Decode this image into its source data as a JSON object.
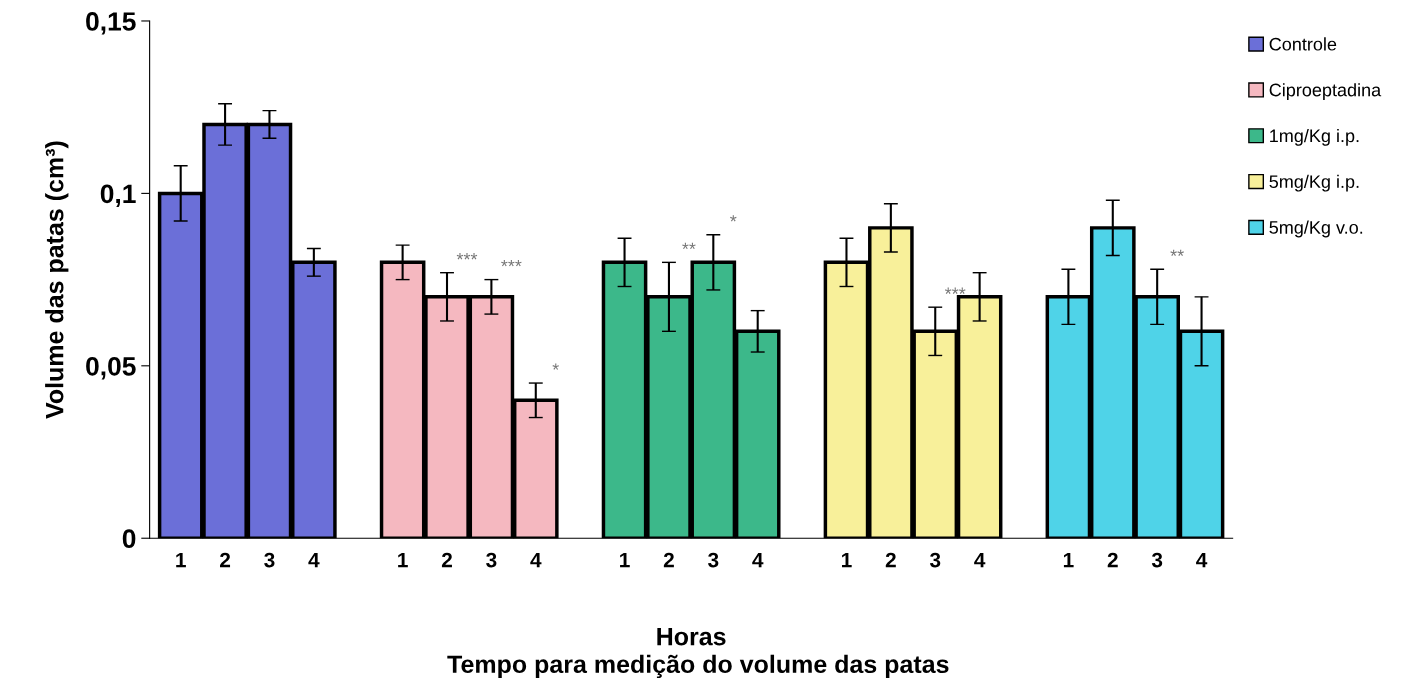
{
  "chart_data": {
    "type": "bar",
    "ylabel": "Volume das patas (cm³)",
    "xlabel": "Horas",
    "annotations": [
      "Tempo para medição do volume das patas"
    ],
    "categories": [
      "1",
      "2",
      "3",
      "4",
      null,
      "1",
      "2",
      "3",
      "4",
      null,
      "1",
      "2",
      "3",
      "4",
      null,
      "1",
      "2",
      "3",
      "4",
      null,
      "1",
      "2",
      "3",
      "4"
    ],
    "ylim": [
      0,
      0.15
    ],
    "yticks": [
      {
        "value": 0,
        "label": "0"
      },
      {
        "value": 0.05,
        "label": "0,05"
      },
      {
        "value": 0.1,
        "label": "0,1"
      },
      {
        "value": 0.15,
        "label": "0,15"
      }
    ],
    "grid": false,
    "legend": "top right",
    "series": [
      {
        "name": "Controle",
        "color": "#6b6fd8",
        "values": [
          0.1,
          0.12,
          0.12,
          0.08,
          null,
          null,
          null,
          null,
          null,
          null,
          null,
          null,
          null,
          null,
          null,
          null,
          null,
          null,
          null,
          null,
          null,
          null,
          null,
          null
        ],
        "errors": [
          0.008,
          0.006,
          0.004,
          0.004,
          null,
          null,
          null,
          null,
          null,
          null,
          null,
          null,
          null,
          null,
          null,
          null,
          null,
          null,
          null,
          null,
          null,
          null,
          null,
          null
        ]
      },
      {
        "name": "Ciproeptadina",
        "color": "#f5b8c0",
        "values": [
          null,
          null,
          null,
          null,
          null,
          0.08,
          0.07,
          0.07,
          0.04,
          null,
          null,
          null,
          null,
          null,
          null,
          null,
          null,
          null,
          null,
          null,
          null,
          null,
          null,
          null
        ],
        "errors": [
          null,
          null,
          null,
          null,
          null,
          0.005,
          0.007,
          0.005,
          0.005,
          null,
          null,
          null,
          null,
          null,
          null,
          null,
          null,
          null,
          null,
          null,
          null,
          null,
          null,
          null
        ],
        "value_labels": [
          null,
          null,
          null,
          null,
          null,
          null,
          "***",
          "***",
          "*",
          null,
          null,
          null,
          null,
          null,
          null,
          null,
          null,
          null,
          null,
          null,
          null,
          null,
          null,
          null
        ]
      },
      {
        "name": "1mg/Kg i.p.",
        "color": "#3cb88a",
        "values": [
          null,
          null,
          null,
          null,
          null,
          null,
          null,
          null,
          null,
          null,
          0.08,
          0.07,
          0.08,
          0.06,
          null,
          null,
          null,
          null,
          null,
          null,
          null,
          null,
          null,
          null
        ],
        "errors": [
          null,
          null,
          null,
          null,
          null,
          null,
          null,
          null,
          null,
          null,
          0.007,
          0.01,
          0.008,
          0.006,
          null,
          null,
          null,
          null,
          null,
          null,
          null,
          null,
          null,
          null
        ],
        "value_labels": [
          null,
          null,
          null,
          null,
          null,
          null,
          null,
          null,
          null,
          null,
          null,
          "**",
          "*",
          null,
          null,
          null,
          null,
          null,
          null,
          null,
          null,
          null,
          null,
          null
        ]
      },
      {
        "name": "5mg/Kg i.p.",
        "color": "#f8f09a",
        "values": [
          null,
          null,
          null,
          null,
          null,
          null,
          null,
          null,
          null,
          null,
          null,
          null,
          null,
          null,
          null,
          0.08,
          0.09,
          0.06,
          0.07,
          null,
          null,
          null,
          null,
          null
        ],
        "errors": [
          null,
          null,
          null,
          null,
          null,
          null,
          null,
          null,
          null,
          null,
          null,
          null,
          null,
          null,
          null,
          0.007,
          0.007,
          0.007,
          0.007,
          null,
          null,
          null,
          null,
          null
        ],
        "value_labels": [
          null,
          null,
          null,
          null,
          null,
          null,
          null,
          null,
          null,
          null,
          null,
          null,
          null,
          null,
          null,
          null,
          null,
          "***",
          null,
          null,
          null,
          null,
          null,
          null
        ]
      },
      {
        "name": "5mg/Kg v.o.",
        "color": "#4fd3e8",
        "values": [
          null,
          null,
          null,
          null,
          null,
          null,
          null,
          null,
          null,
          null,
          null,
          null,
          null,
          null,
          null,
          null,
          null,
          null,
          null,
          null,
          0.07,
          0.09,
          0.07,
          0.06
        ],
        "errors": [
          null,
          null,
          null,
          null,
          null,
          null,
          null,
          null,
          null,
          null,
          null,
          null,
          null,
          null,
          null,
          null,
          null,
          null,
          null,
          null,
          0.008,
          0.008,
          0.008,
          0.01
        ],
        "value_labels": [
          null,
          null,
          null,
          null,
          null,
          null,
          null,
          null,
          null,
          null,
          null,
          null,
          null,
          null,
          null,
          null,
          null,
          null,
          null,
          null,
          null,
          null,
          "**",
          null
        ]
      }
    ]
  }
}
